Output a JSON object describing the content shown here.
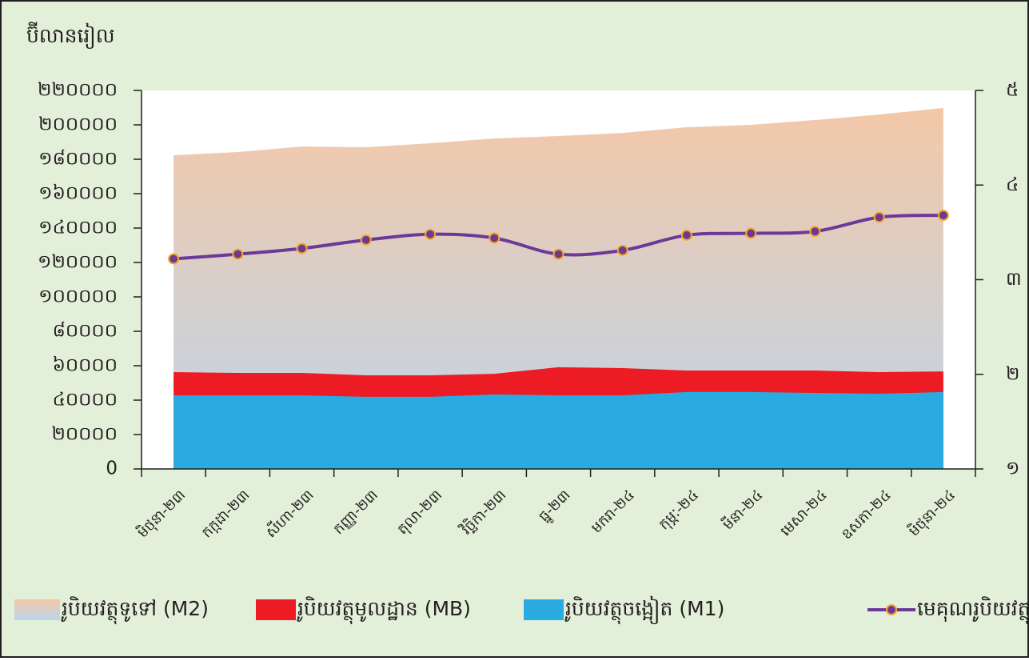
{
  "chart_data": {
    "type": "area_line",
    "y_label": "ប៊ីលានរៀល",
    "categories": [
      "មិថុនា-២៣",
      "កក្កដា-២៣",
      "សីហា-២៣",
      "កញ្ញា-២៣",
      "តុលា-២៣",
      "វិច្ឆិកា-២៣",
      "ធ្នូ-២៣",
      "មករា-២៤",
      "កុម្ភៈ-២៤",
      "មីនា-២៤",
      "មេសា-២៤",
      "ឧសភា-២៤",
      "មិថុនា-២៤"
    ],
    "series": [
      {
        "name": "រូបិយវត្ថុទូទៅ (M2)",
        "type": "area",
        "color": [
          "#f4c8a8",
          "#bcd5ec"
        ],
        "values": [
          182300,
          184200,
          187400,
          187000,
          189300,
          192100,
          193500,
          195300,
          198600,
          200000,
          202800,
          206000,
          209800
        ]
      },
      {
        "name": "រូបិយវត្ថុមូលដ្ឋាន (MB)",
        "type": "area",
        "color": "#ed1c24",
        "values": [
          56300,
          55800,
          55800,
          54400,
          54400,
          55300,
          59100,
          58600,
          57200,
          57200,
          57200,
          56300,
          56700
        ]
      },
      {
        "name": "រូបិយវត្ថុចង្អៀត (M1)",
        "type": "area",
        "color": "#29abe2",
        "values": [
          42800,
          42800,
          42800,
          41900,
          41900,
          43300,
          42800,
          42800,
          44700,
          44700,
          44200,
          43700,
          44700
        ]
      },
      {
        "name": "មេគុណរូបិយវត្ថុ(ស្តាំ)",
        "type": "line",
        "axis": "y2",
        "color": "#6b3a96",
        "marker_edge": "#f7a823",
        "values": [
          3.22,
          3.27,
          3.33,
          3.42,
          3.48,
          3.44,
          3.27,
          3.31,
          3.47,
          3.49,
          3.51,
          3.66,
          3.68
        ]
      }
    ],
    "ylim": [
      0,
      220000
    ],
    "yticks": [
      {
        "value": 0,
        "label": "0"
      },
      {
        "value": 20000,
        "label": "២០០០០"
      },
      {
        "value": 40000,
        "label": "៤០០០០"
      },
      {
        "value": 60000,
        "label": "៦០០០០"
      },
      {
        "value": 80000,
        "label": "៨០០០០"
      },
      {
        "value": 100000,
        "label": "១០០០០០"
      },
      {
        "value": 120000,
        "label": "១២០០០០"
      },
      {
        "value": 140000,
        "label": "១៤០០០០"
      },
      {
        "value": 160000,
        "label": "១៦០០០០"
      },
      {
        "value": 180000,
        "label": "១៨០០០០"
      },
      {
        "value": 200000,
        "label": "២០០០០០"
      },
      {
        "value": 220000,
        "label": "២២០០០០"
      }
    ],
    "y2lim": [
      1,
      5
    ],
    "y2ticks": [
      {
        "value": 1,
        "label": "១"
      },
      {
        "value": 2,
        "label": "២"
      },
      {
        "value": 3,
        "label": "៣"
      },
      {
        "value": 4,
        "label": "៤"
      },
      {
        "value": 5,
        "label": "៥"
      }
    ],
    "background": "#e2efd9"
  }
}
